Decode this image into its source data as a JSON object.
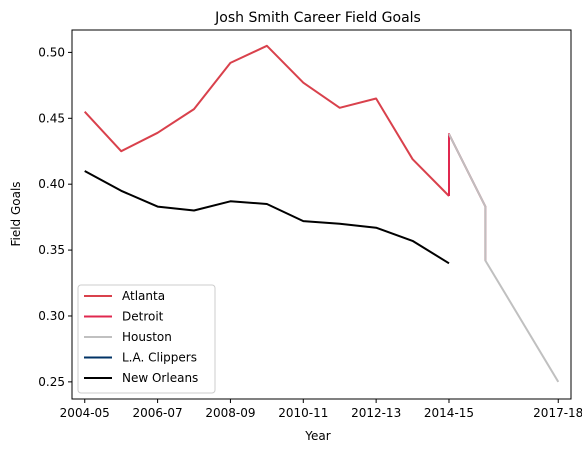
{
  "chart_data": {
    "type": "line",
    "title": "Josh Smith Career Field Goals",
    "xlabel": "Year",
    "ylabel": "Field Goals",
    "x_ticks": [
      "2004-05",
      "2006-07",
      "2008-09",
      "2010-11",
      "2012-13",
      "2014-15",
      "2017-18"
    ],
    "y_ticks": [
      "0.25",
      "0.30",
      "0.35",
      "0.40",
      "0.45",
      "0.50"
    ],
    "ylim": [
      0.237,
      0.517
    ],
    "legend_position": "lower-left",
    "series": [
      {
        "name": "Atlanta",
        "color": "#d9414c",
        "x": [
          "2004-05",
          "2005-06",
          "2006-07",
          "2007-08",
          "2008-09",
          "2009-10",
          "2010-11",
          "2011-12",
          "2012-13",
          "2013-14",
          "2014-15"
        ],
        "values": [
          0.455,
          0.425,
          0.439,
          0.457,
          0.492,
          0.505,
          0.477,
          0.458,
          0.465,
          0.419,
          0.391
        ]
      },
      {
        "name": "Detroit",
        "color": "#e0284f",
        "x": [
          "2014-15",
          "2014-15",
          "2015-16",
          "2015-16"
        ],
        "values": [
          0.391,
          0.438,
          0.383,
          0.342
        ]
      },
      {
        "name": "Houston",
        "color": "#c0c0c0",
        "x": [
          "2014-15",
          "2015-16",
          "2015-16",
          "2017-18"
        ],
        "values": [
          0.438,
          0.383,
          0.342,
          0.25
        ]
      },
      {
        "name": "L.A. Clippers",
        "color": "#003366",
        "x": [],
        "values": []
      },
      {
        "name": "New Orleans",
        "color": "#000000",
        "x": [
          "2004-05",
          "2005-06",
          "2006-07",
          "2007-08",
          "2008-09",
          "2009-10",
          "2010-11",
          "2011-12",
          "2012-13",
          "2013-14",
          "2014-15"
        ],
        "values": [
          0.41,
          0.395,
          0.383,
          0.38,
          0.387,
          0.385,
          0.372,
          0.37,
          0.367,
          0.357,
          0.34
        ]
      }
    ]
  }
}
